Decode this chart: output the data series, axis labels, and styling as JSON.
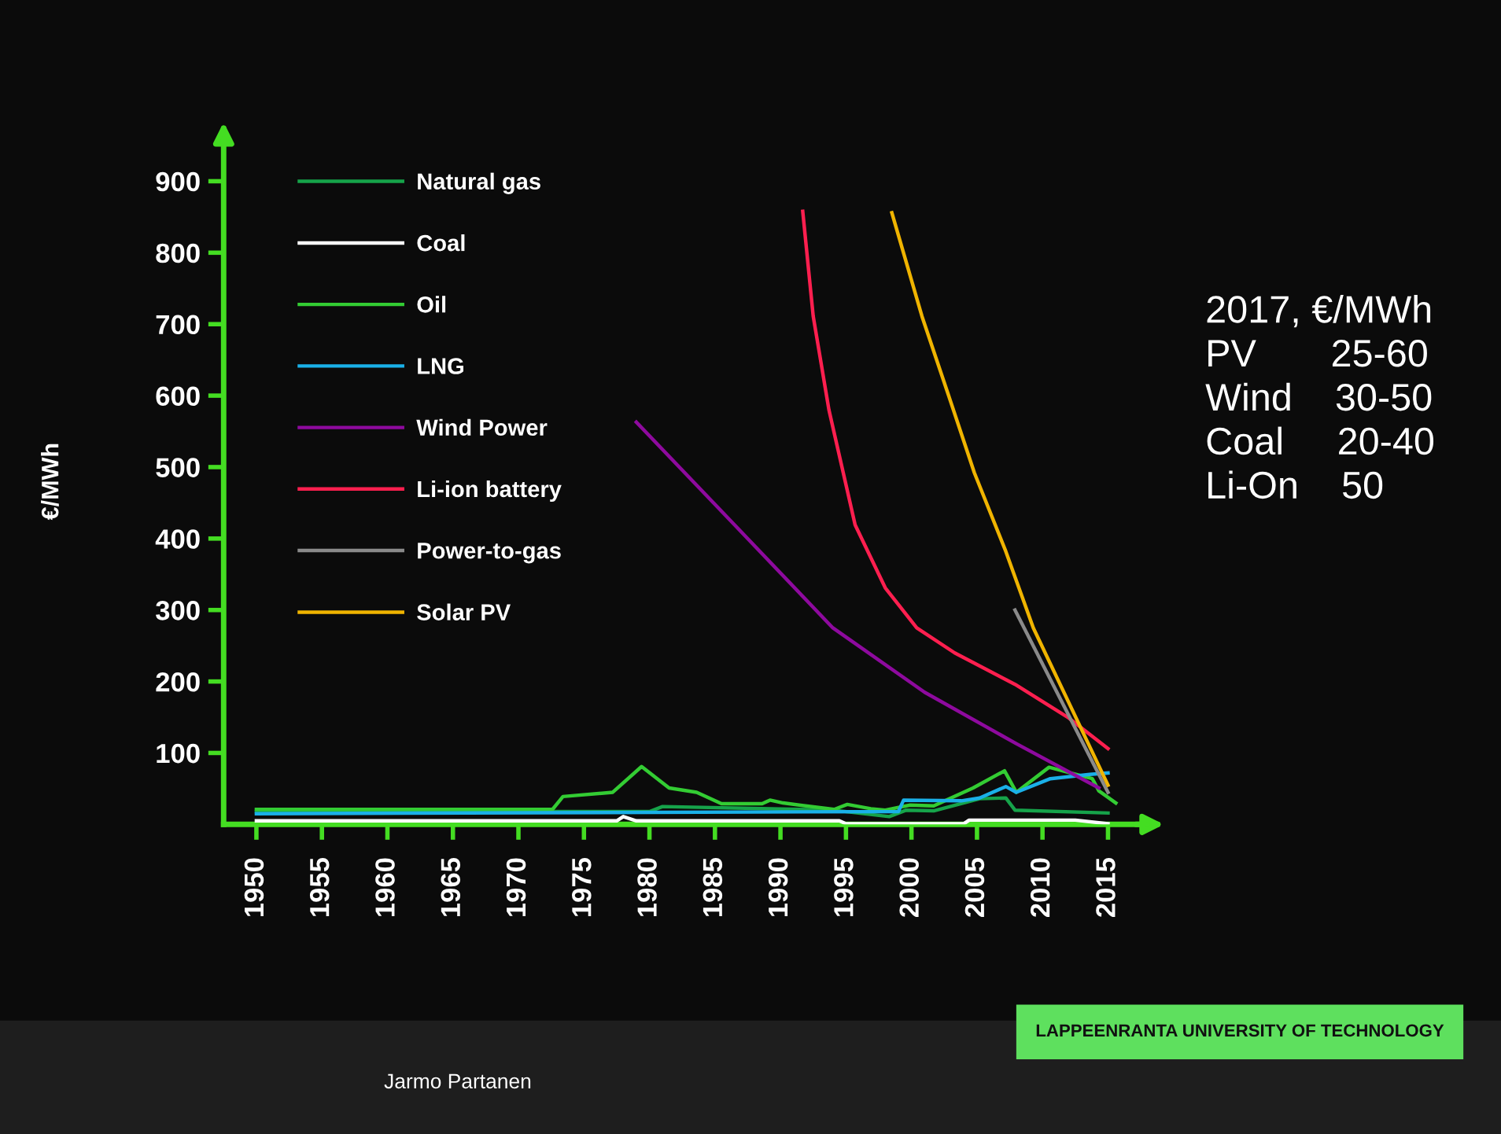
{
  "chart_data": {
    "type": "line",
    "ylabel": "€/MWh",
    "xlim": [
      1947.5,
      2017.5
    ],
    "xticks": [
      1950,
      1955,
      1960,
      1965,
      1970,
      1975,
      1980,
      1985,
      1990,
      1995,
      2000,
      2005,
      2010,
      2015
    ],
    "ylim": [
      0,
      960
    ],
    "yticks": [
      100,
      200,
      300,
      400,
      500,
      600,
      700,
      800,
      900
    ],
    "grid": false,
    "legend": "top left",
    "marker": "none",
    "line_style": "solid",
    "series": [
      {
        "name": "Natural gas",
        "color": "#16a34a",
        "x": [
          1950,
          1980,
          1981,
          1994,
          1998.3,
          1999.6,
          2001.7,
          2005.2,
          2007.2,
          2007.9,
          2015
        ],
        "values": [
          18,
          18,
          25,
          20,
          11,
          20,
          19,
          36,
          37,
          20,
          16
        ]
      },
      {
        "name": "Coal",
        "color": "#ffffff",
        "x": [
          1950,
          1977.5,
          1978,
          1979,
          1994.5,
          1995,
          2004,
          2004.4,
          2012.5,
          2015
        ],
        "values": [
          5,
          5,
          11,
          5,
          5,
          1,
          1,
          6,
          6,
          1
        ]
      },
      {
        "name": "Oil",
        "color": "#33cc33",
        "x": [
          1950,
          1972.6,
          1973.4,
          1977.2,
          1979.4,
          1981.5,
          1983.6,
          1985.5,
          1988.6,
          1989.2,
          1990.2,
          1994.1,
          1995.1,
          1996.9,
          1998,
          1999.9,
          2001.7,
          2004.7,
          2007.1,
          2008,
          2010.5,
          2013.8,
          2014.3,
          2015.6
        ],
        "values": [
          21,
          21,
          39,
          45,
          81,
          51,
          45,
          29,
          29,
          34,
          30,
          21,
          28,
          22,
          20,
          27,
          26,
          51,
          75,
          45,
          80,
          64,
          47,
          30
        ]
      },
      {
        "name": "LNG",
        "color": "#1ab0e8",
        "x": [
          1950,
          1999,
          1999.4,
          2003.8,
          2005.2,
          2007.2,
          2008,
          2010.6,
          2013.6,
          2015
        ],
        "values": [
          15,
          18,
          34,
          33,
          37,
          53,
          45,
          64,
          70,
          72
        ]
      },
      {
        "name": "Wind Power",
        "color": "#8e0a9e",
        "x": [
          1979,
          1986.5,
          1994,
          2001,
          2008,
          2014.3
        ],
        "values": [
          563,
          419,
          275,
          185,
          113,
          51
        ]
      },
      {
        "name": "Li-ion battery",
        "color": "#ff1f4f",
        "x": [
          1991.7,
          1992.5,
          1993.7,
          1995.7,
          1998,
          2000.4,
          2003.3,
          2007.9,
          2012,
          2015
        ],
        "values": [
          858,
          711,
          580,
          419,
          331,
          275,
          240,
          196,
          149,
          106
        ]
      },
      {
        "name": "Power-to-gas",
        "color": "#8a8a8a",
        "x": [
          2007.9,
          2015
        ],
        "values": [
          300,
          45
        ]
      },
      {
        "name": "Solar PV",
        "color": "#f0b400",
        "x": [
          1998.5,
          2000.8,
          2002.8,
          2004.8,
          2007.2,
          2009.3,
          2015
        ],
        "values": [
          856,
          711,
          602,
          492,
          382,
          275,
          55
        ]
      }
    ],
    "annotations": [
      "2017, €/MWh\nPV       25-60\nWind    30-50\nCoal     20-40\nLi-On    50",
      "Jarmo Partanen",
      "LAPPEENRANTA UNIVERSITY OF TECHNOLOGY"
    ]
  }
}
